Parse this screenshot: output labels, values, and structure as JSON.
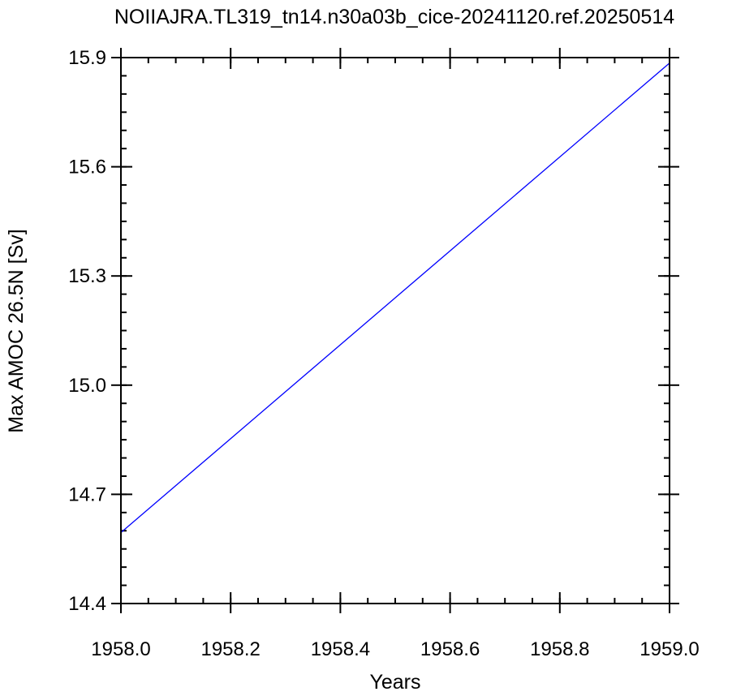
{
  "chart_data": {
    "type": "line",
    "title": "NOIIAJRA.TL319_tn14.n30a03b_cice-20241120.ref.20250514",
    "xlabel": "Years",
    "ylabel": "Max AMOC 26.5N [Sv]",
    "xlim": [
      1958.0,
      1959.0
    ],
    "ylim": [
      14.4,
      15.9
    ],
    "xticks": [
      "1958.0",
      "1958.2",
      "1958.4",
      "1958.6",
      "1958.8",
      "1959.0"
    ],
    "yticks": [
      "14.4",
      "14.7",
      "15.0",
      "15.3",
      "15.6",
      "15.9"
    ],
    "grid": false,
    "series": [
      {
        "color": "#0000ff",
        "x": [
          1958.0,
          1959.0
        ],
        "y": [
          14.595,
          15.885
        ]
      }
    ]
  }
}
